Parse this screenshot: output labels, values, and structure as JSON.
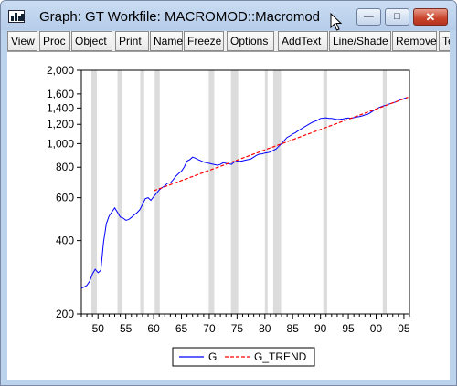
{
  "window": {
    "title": "Graph: GT   Workfile: MACROMOD::Macromod",
    "buttons": {
      "minimize": "—",
      "maximize": "□",
      "close": "✕"
    }
  },
  "toolbar": {
    "items": [
      "View",
      "Proc",
      "Object",
      "Print",
      "Name",
      "Freeze",
      "Options",
      "AddText",
      "Line/Shade",
      "Remove",
      "Te"
    ]
  },
  "colors": {
    "series_g": "#0000ff",
    "series_trend": "#ff0000",
    "shading": "#dcdcdc"
  },
  "chart_data": {
    "type": "line",
    "y_scale": "log",
    "xlim": [
      1947,
      2006
    ],
    "ylim": [
      200,
      2000
    ],
    "x_ticks": [
      1950,
      1955,
      1960,
      1965,
      1970,
      1975,
      1980,
      1985,
      1990,
      1995,
      2000,
      2005
    ],
    "x_tick_labels": [
      "50",
      "55",
      "60",
      "65",
      "70",
      "75",
      "80",
      "85",
      "90",
      "95",
      "00",
      "05"
    ],
    "y_ticks": [
      200,
      400,
      600,
      800,
      1000,
      1200,
      1400,
      1600,
      2000
    ],
    "y_tick_labels": [
      "200",
      "400",
      "600",
      "800",
      "1,000",
      "1,200",
      "1,400",
      "1,600",
      "2,000"
    ],
    "grid": false,
    "legend_position": "bottom-center",
    "recessions": [
      [
        1948.8,
        1949.8
      ],
      [
        1953.5,
        1954.3
      ],
      [
        1957.6,
        1958.3
      ],
      [
        1960.2,
        1961.1
      ],
      [
        1969.9,
        1970.9
      ],
      [
        1973.9,
        1975.2
      ],
      [
        1980.0,
        1980.5
      ],
      [
        1981.5,
        1982.9
      ],
      [
        1990.5,
        1991.2
      ],
      [
        2001.2,
        2001.9
      ]
    ],
    "series": [
      {
        "name": "G",
        "x": [
          1947.0,
          1947.5,
          1948.0,
          1948.5,
          1949.0,
          1949.5,
          1950.0,
          1950.5,
          1951.0,
          1951.5,
          1952.0,
          1952.5,
          1953.0,
          1953.5,
          1954.0,
          1954.5,
          1955.0,
          1955.5,
          1956.0,
          1956.5,
          1957.0,
          1957.5,
          1958.0,
          1958.5,
          1959.0,
          1959.5,
          1960.0,
          1960.5,
          1961.0,
          1961.5,
          1962.0,
          1962.5,
          1963.0,
          1963.5,
          1964.0,
          1964.5,
          1965.0,
          1965.5,
          1966.0,
          1966.5,
          1967.0,
          1967.5,
          1968.0,
          1968.5,
          1969.0,
          1969.5,
          1970.0,
          1970.5,
          1971.0,
          1971.5,
          1972.0,
          1972.5,
          1973.0,
          1973.5,
          1974.0,
          1974.5,
          1975.0,
          1975.5,
          1976.0,
          1976.5,
          1977.0,
          1977.5,
          1978.0,
          1978.5,
          1979.0,
          1979.5,
          1980.0,
          1980.5,
          1981.0,
          1981.5,
          1982.0,
          1982.5,
          1983.0,
          1983.5,
          1984.0,
          1984.5,
          1985.0,
          1985.5,
          1986.0,
          1986.5,
          1987.0,
          1987.5,
          1988.0,
          1988.5,
          1989.0,
          1989.5,
          1990.0,
          1990.5,
          1991.0,
          1991.5,
          1992.0,
          1992.5,
          1993.0,
          1993.5,
          1994.0,
          1994.5,
          1995.0,
          1995.5,
          1996.0,
          1996.5,
          1997.0,
          1997.5,
          1998.0,
          1998.5,
          1999.0,
          1999.5,
          2000.0,
          2000.5,
          2001.0,
          2001.5,
          2002.0,
          2002.5,
          2003.0,
          2003.5,
          2004.0,
          2004.5,
          2005.0,
          2005.5
        ],
        "values": [
          255,
          258,
          262,
          272,
          292,
          305,
          295,
          302,
          395,
          470,
          505,
          525,
          545,
          522,
          500,
          495,
          485,
          488,
          498,
          510,
          520,
          535,
          562,
          595,
          600,
          585,
          605,
          625,
          645,
          660,
          670,
          688,
          690,
          710,
          735,
          755,
          770,
          802,
          848,
          860,
          880,
          872,
          860,
          850,
          840,
          835,
          830,
          825,
          820,
          815,
          822,
          835,
          830,
          826,
          822,
          840,
          848,
          845,
          850,
          855,
          860,
          866,
          880,
          895,
          905,
          908,
          915,
          918,
          924,
          938,
          950,
          975,
          1000,
          1030,
          1060,
          1075,
          1095,
          1110,
          1130,
          1148,
          1168,
          1185,
          1205,
          1222,
          1235,
          1248,
          1268,
          1272,
          1276,
          1270,
          1268,
          1262,
          1255,
          1258,
          1262,
          1268,
          1274,
          1268,
          1278,
          1285,
          1292,
          1300,
          1312,
          1320,
          1340,
          1365,
          1385,
          1405,
          1420,
          1432,
          1444,
          1458,
          1470,
          1482,
          1500,
          1515,
          1530,
          1545
        ]
      },
      {
        "name": "G_TREND",
        "x": [
          1960.0,
          2005.75
        ],
        "values": [
          640,
          1550
        ]
      }
    ]
  }
}
